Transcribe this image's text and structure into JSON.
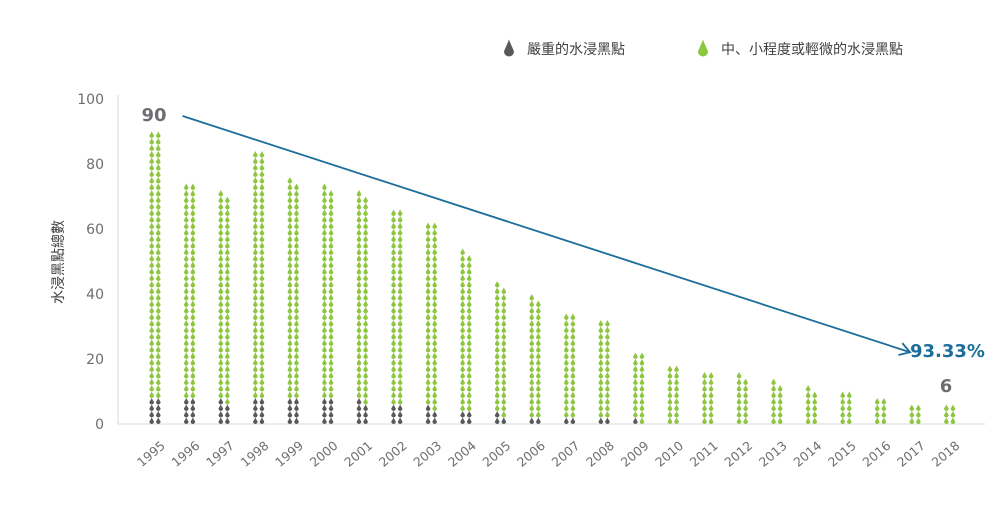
{
  "chart_data": {
    "type": "bar",
    "title": "",
    "xlabel": "",
    "ylabel": "水浸黑點總數",
    "ylim": [
      0,
      100
    ],
    "yticks": [
      0,
      20,
      40,
      60,
      80,
      100
    ],
    "grid": false,
    "legend_position": "top-right",
    "stacked": true,
    "categories": [
      "1995",
      "1996",
      "1997",
      "1998",
      "1999",
      "2000",
      "2001",
      "2002",
      "2003",
      "2004",
      "2005",
      "2006",
      "2007",
      "2008",
      "2009",
      "2010",
      "2011",
      "2012",
      "2013",
      "2014",
      "2015",
      "2016",
      "2017",
      "2018"
    ],
    "series": [
      {
        "name": "嚴重的水浸黑點",
        "color": "#58595b",
        "values": [
          8,
          8,
          7,
          8,
          8,
          8,
          7,
          6,
          5,
          4,
          3,
          2,
          2,
          2,
          1,
          0,
          0,
          0,
          0,
          0,
          0,
          0,
          0,
          0
        ]
      },
      {
        "name": "中、小程度或輕微的水浸黑點",
        "color": "#8dc63f",
        "values": [
          82,
          66,
          64,
          76,
          67,
          65,
          64,
          60,
          57,
          49,
          40,
          37,
          32,
          30,
          21,
          18,
          16,
          15,
          13,
          11,
          10,
          8,
          6,
          6
        ]
      }
    ],
    "annotations": [
      {
        "text": "90",
        "category": "1995",
        "color": "#6d6e71"
      },
      {
        "text": "6",
        "category": "2018",
        "color": "#6d6e71"
      },
      {
        "text": "93.33%",
        "type": "trend-arrow",
        "from": {
          "x": "1996",
          "y": 96
        },
        "to": {
          "x": "2017",
          "y": 23
        },
        "color": "#1b6e9a"
      }
    ]
  },
  "colors": {
    "axis": "#d9d9d9",
    "tick_text": "#6d6e71",
    "trend": "#1b6e9a"
  }
}
